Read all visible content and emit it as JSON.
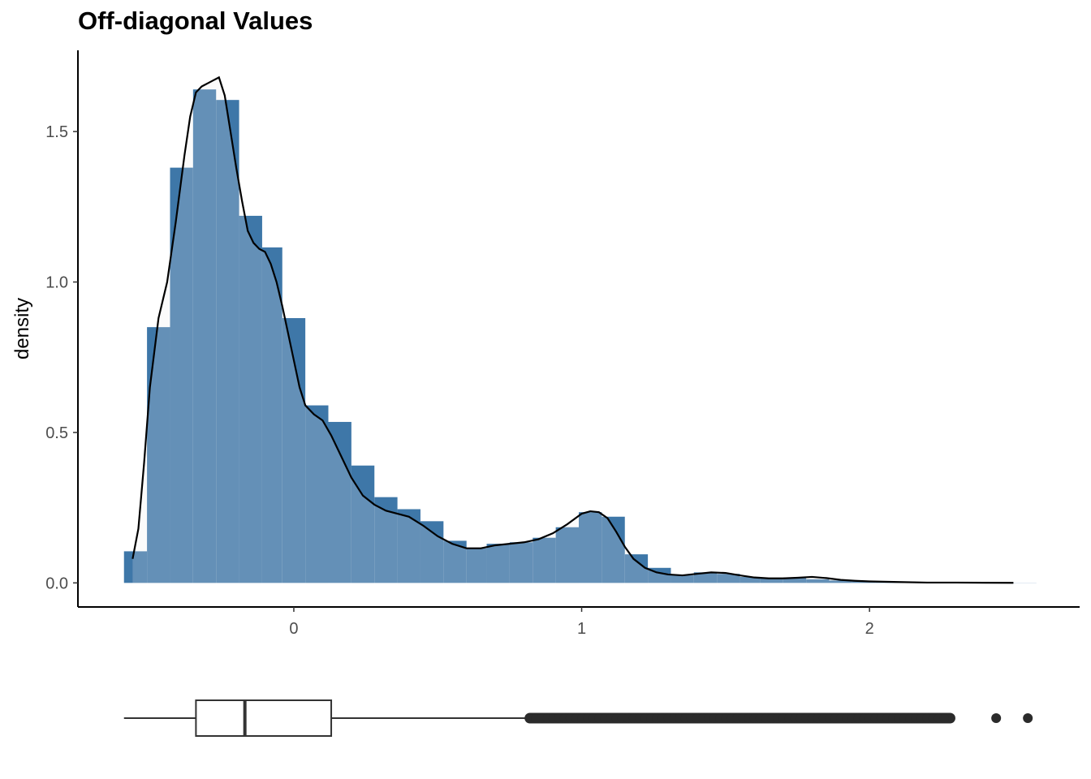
{
  "chart_data": {
    "type": "histogram",
    "title": "Off-diagonal Values",
    "ylabel": "density",
    "xlabel": "",
    "xlim": [
      -0.75,
      2.73
    ],
    "ylim": [
      -0.08,
      1.77
    ],
    "x_ticks": [
      0,
      1,
      2
    ],
    "y_ticks": [
      0.0,
      0.5,
      1.0,
      1.5
    ],
    "x_tick_labels": [
      "0",
      "1",
      "2"
    ],
    "y_tick_labels": [
      "0.0",
      "0.5",
      "1.0",
      "1.5"
    ],
    "grid": false,
    "colors": {
      "bar_fill": "#3e77a8",
      "bar_outline": "#1a5e9e",
      "density_fill": "#ebebeb",
      "density_line": "#000000",
      "boxplot": "#333333",
      "outlier": "#2b2b2b"
    },
    "histogram": {
      "bin_width": 0.079,
      "bins": [
        {
          "x0": -0.59,
          "x1": -0.51,
          "density": 0.105
        },
        {
          "x0": -0.51,
          "x1": -0.43,
          "density": 0.85
        },
        {
          "x0": -0.43,
          "x1": -0.35,
          "density": 1.38
        },
        {
          "x0": -0.35,
          "x1": -0.27,
          "density": 1.64
        },
        {
          "x0": -0.27,
          "x1": -0.19,
          "density": 1.605
        },
        {
          "x0": -0.19,
          "x1": -0.11,
          "density": 1.22
        },
        {
          "x0": -0.11,
          "x1": -0.04,
          "density": 1.115
        },
        {
          "x0": -0.04,
          "x1": 0.04,
          "density": 0.88
        },
        {
          "x0": 0.04,
          "x1": 0.12,
          "density": 0.59
        },
        {
          "x0": 0.12,
          "x1": 0.2,
          "density": 0.535
        },
        {
          "x0": 0.2,
          "x1": 0.28,
          "density": 0.39
        },
        {
          "x0": 0.28,
          "x1": 0.36,
          "density": 0.285
        },
        {
          "x0": 0.36,
          "x1": 0.44,
          "density": 0.245
        },
        {
          "x0": 0.44,
          "x1": 0.52,
          "density": 0.205
        },
        {
          "x0": 0.52,
          "x1": 0.6,
          "density": 0.14
        },
        {
          "x0": 0.6,
          "x1": 0.67,
          "density": 0.115
        },
        {
          "x0": 0.67,
          "x1": 0.75,
          "density": 0.13
        },
        {
          "x0": 0.75,
          "x1": 0.83,
          "density": 0.135
        },
        {
          "x0": 0.83,
          "x1": 0.91,
          "density": 0.15
        },
        {
          "x0": 0.91,
          "x1": 0.99,
          "density": 0.185
        },
        {
          "x0": 0.99,
          "x1": 1.07,
          "density": 0.235
        },
        {
          "x0": 1.07,
          "x1": 1.15,
          "density": 0.22
        },
        {
          "x0": 1.15,
          "x1": 1.23,
          "density": 0.095
        },
        {
          "x0": 1.23,
          "x1": 1.31,
          "density": 0.05
        },
        {
          "x0": 1.31,
          "x1": 1.39,
          "density": 0.025
        },
        {
          "x0": 1.39,
          "x1": 1.47,
          "density": 0.035
        },
        {
          "x0": 1.47,
          "x1": 1.55,
          "density": 0.03
        },
        {
          "x0": 1.55,
          "x1": 1.62,
          "density": 0.02
        },
        {
          "x0": 1.62,
          "x1": 1.7,
          "density": 0.015
        },
        {
          "x0": 1.7,
          "x1": 1.78,
          "density": 0.018
        },
        {
          "x0": 1.78,
          "x1": 1.86,
          "density": 0.012
        },
        {
          "x0": 1.86,
          "x1": 1.94,
          "density": 0.008
        },
        {
          "x0": 1.94,
          "x1": 2.02,
          "density": 0.005
        },
        {
          "x0": 2.02,
          "x1": 2.1,
          "density": 0.003
        },
        {
          "x0": 2.1,
          "x1": 2.18,
          "density": 0.002
        },
        {
          "x0": 2.18,
          "x1": 2.26,
          "density": 0.001
        },
        {
          "x0": 2.26,
          "x1": 2.34,
          "density": 0.001
        },
        {
          "x0": 2.34,
          "x1": 2.42,
          "density": 0.0005
        },
        {
          "x0": 2.42,
          "x1": 2.5,
          "density": 0.0005
        },
        {
          "x0": 2.5,
          "x1": 2.58,
          "density": 0.0004
        }
      ]
    },
    "density_curve": {
      "x": [
        -0.56,
        -0.54,
        -0.52,
        -0.5,
        -0.47,
        -0.44,
        -0.41,
        -0.38,
        -0.36,
        -0.34,
        -0.32,
        -0.3,
        -0.28,
        -0.26,
        -0.24,
        -0.22,
        -0.2,
        -0.18,
        -0.16,
        -0.14,
        -0.12,
        -0.1,
        -0.08,
        -0.06,
        -0.04,
        -0.02,
        0.0,
        0.02,
        0.04,
        0.07,
        0.1,
        0.13,
        0.16,
        0.2,
        0.24,
        0.28,
        0.32,
        0.36,
        0.4,
        0.45,
        0.5,
        0.55,
        0.6,
        0.65,
        0.7,
        0.75,
        0.8,
        0.85,
        0.9,
        0.95,
        1.0,
        1.03,
        1.06,
        1.09,
        1.12,
        1.15,
        1.18,
        1.22,
        1.26,
        1.3,
        1.35,
        1.4,
        1.45,
        1.5,
        1.55,
        1.6,
        1.65,
        1.7,
        1.75,
        1.8,
        1.85,
        1.9,
        1.95,
        2.0,
        2.1,
        2.2,
        2.3,
        2.4,
        2.5
      ],
      "y": [
        0.08,
        0.18,
        0.4,
        0.65,
        0.88,
        1.0,
        1.2,
        1.42,
        1.55,
        1.63,
        1.65,
        1.66,
        1.67,
        1.68,
        1.62,
        1.5,
        1.38,
        1.27,
        1.17,
        1.13,
        1.11,
        1.1,
        1.06,
        1.0,
        0.92,
        0.83,
        0.74,
        0.65,
        0.59,
        0.56,
        0.54,
        0.49,
        0.43,
        0.35,
        0.29,
        0.26,
        0.24,
        0.23,
        0.22,
        0.19,
        0.155,
        0.13,
        0.115,
        0.115,
        0.125,
        0.13,
        0.135,
        0.145,
        0.165,
        0.195,
        0.23,
        0.238,
        0.235,
        0.215,
        0.17,
        0.12,
        0.08,
        0.05,
        0.035,
        0.028,
        0.025,
        0.03,
        0.035,
        0.033,
        0.025,
        0.018,
        0.015,
        0.015,
        0.017,
        0.02,
        0.016,
        0.01,
        0.007,
        0.005,
        0.003,
        0.001,
        0.001,
        0.0005,
        0.0003
      ]
    },
    "boxplot": {
      "whisker_low": -0.59,
      "q1": -0.34,
      "median": -0.17,
      "q3": 0.13,
      "whisker_high": 0.82,
      "outlier_band": [
        0.82,
        2.28
      ],
      "outliers": [
        2.44,
        2.55
      ]
    }
  }
}
